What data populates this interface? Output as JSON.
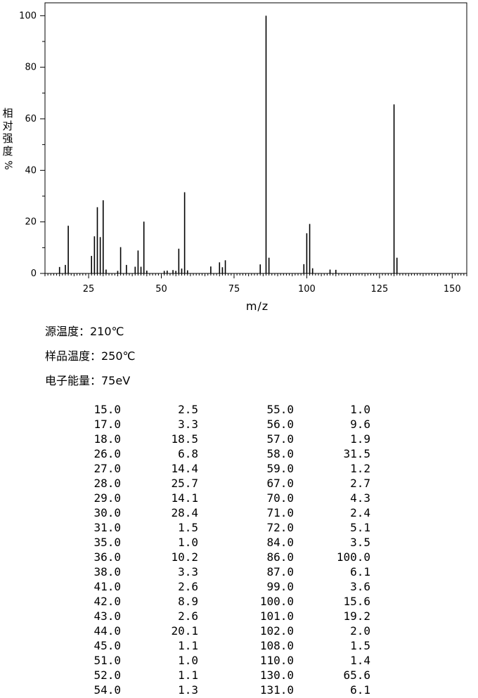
{
  "chart_data": {
    "type": "bar",
    "xlabel": "m/z",
    "ylabel": "相对强度",
    "ylabel_unit": "%",
    "xlim": [
      10,
      155
    ],
    "ylim": [
      0,
      105
    ],
    "x_ticks": [
      25,
      50,
      75,
      100,
      125,
      150
    ],
    "y_ticks": [
      0,
      20,
      40,
      60,
      80,
      100
    ],
    "grid": false,
    "peaks": [
      {
        "mz": 15.0,
        "intensity": 2.5
      },
      {
        "mz": 17.0,
        "intensity": 3.3
      },
      {
        "mz": 18.0,
        "intensity": 18.5
      },
      {
        "mz": 26.0,
        "intensity": 6.8
      },
      {
        "mz": 27.0,
        "intensity": 14.4
      },
      {
        "mz": 28.0,
        "intensity": 25.7
      },
      {
        "mz": 29.0,
        "intensity": 14.1
      },
      {
        "mz": 30.0,
        "intensity": 28.4
      },
      {
        "mz": 31.0,
        "intensity": 1.5
      },
      {
        "mz": 35.0,
        "intensity": 1.0
      },
      {
        "mz": 36.0,
        "intensity": 10.2
      },
      {
        "mz": 38.0,
        "intensity": 3.3
      },
      {
        "mz": 41.0,
        "intensity": 2.6
      },
      {
        "mz": 42.0,
        "intensity": 8.9
      },
      {
        "mz": 43.0,
        "intensity": 2.6
      },
      {
        "mz": 44.0,
        "intensity": 20.1
      },
      {
        "mz": 45.0,
        "intensity": 1.1
      },
      {
        "mz": 51.0,
        "intensity": 1.0
      },
      {
        "mz": 52.0,
        "intensity": 1.1
      },
      {
        "mz": 54.0,
        "intensity": 1.3
      },
      {
        "mz": 55.0,
        "intensity": 1.0
      },
      {
        "mz": 56.0,
        "intensity": 9.6
      },
      {
        "mz": 57.0,
        "intensity": 1.9
      },
      {
        "mz": 58.0,
        "intensity": 31.5
      },
      {
        "mz": 59.0,
        "intensity": 1.2
      },
      {
        "mz": 67.0,
        "intensity": 2.7
      },
      {
        "mz": 70.0,
        "intensity": 4.3
      },
      {
        "mz": 71.0,
        "intensity": 2.4
      },
      {
        "mz": 72.0,
        "intensity": 5.1
      },
      {
        "mz": 84.0,
        "intensity": 3.5
      },
      {
        "mz": 86.0,
        "intensity": 100.0
      },
      {
        "mz": 87.0,
        "intensity": 6.1
      },
      {
        "mz": 99.0,
        "intensity": 3.6
      },
      {
        "mz": 100.0,
        "intensity": 15.6
      },
      {
        "mz": 101.0,
        "intensity": 19.2
      },
      {
        "mz": 102.0,
        "intensity": 2.0
      },
      {
        "mz": 108.0,
        "intensity": 1.5
      },
      {
        "mz": 110.0,
        "intensity": 1.4
      },
      {
        "mz": 130.0,
        "intensity": 65.6
      },
      {
        "mz": 131.0,
        "intensity": 6.1
      }
    ]
  },
  "conditions": {
    "source_temp": "源温度：210℃",
    "sample_temp": "样品温度：250℃",
    "electron_energy": "电子能量：75eV"
  },
  "peak_table": {
    "left": [
      [
        "15.0",
        "2.5"
      ],
      [
        "17.0",
        "3.3"
      ],
      [
        "18.0",
        "18.5"
      ],
      [
        "26.0",
        "6.8"
      ],
      [
        "27.0",
        "14.4"
      ],
      [
        "28.0",
        "25.7"
      ],
      [
        "29.0",
        "14.1"
      ],
      [
        "30.0",
        "28.4"
      ],
      [
        "31.0",
        "1.5"
      ],
      [
        "35.0",
        "1.0"
      ],
      [
        "36.0",
        "10.2"
      ],
      [
        "38.0",
        "3.3"
      ],
      [
        "41.0",
        "2.6"
      ],
      [
        "42.0",
        "8.9"
      ],
      [
        "43.0",
        "2.6"
      ],
      [
        "44.0",
        "20.1"
      ],
      [
        "45.0",
        "1.1"
      ],
      [
        "51.0",
        "1.0"
      ],
      [
        "52.0",
        "1.1"
      ],
      [
        "54.0",
        "1.3"
      ]
    ],
    "right": [
      [
        "55.0",
        "1.0"
      ],
      [
        "56.0",
        "9.6"
      ],
      [
        "57.0",
        "1.9"
      ],
      [
        "58.0",
        "31.5"
      ],
      [
        "59.0",
        "1.2"
      ],
      [
        "67.0",
        "2.7"
      ],
      [
        "70.0",
        "4.3"
      ],
      [
        "71.0",
        "2.4"
      ],
      [
        "72.0",
        "5.1"
      ],
      [
        "84.0",
        "3.5"
      ],
      [
        "86.0",
        "100.0"
      ],
      [
        "87.0",
        "6.1"
      ],
      [
        "99.0",
        "3.6"
      ],
      [
        "100.0",
        "15.6"
      ],
      [
        "101.0",
        "19.2"
      ],
      [
        "102.0",
        "2.0"
      ],
      [
        "108.0",
        "1.5"
      ],
      [
        "110.0",
        "1.4"
      ],
      [
        "130.0",
        "65.6"
      ],
      [
        "131.0",
        "6.1"
      ]
    ]
  }
}
